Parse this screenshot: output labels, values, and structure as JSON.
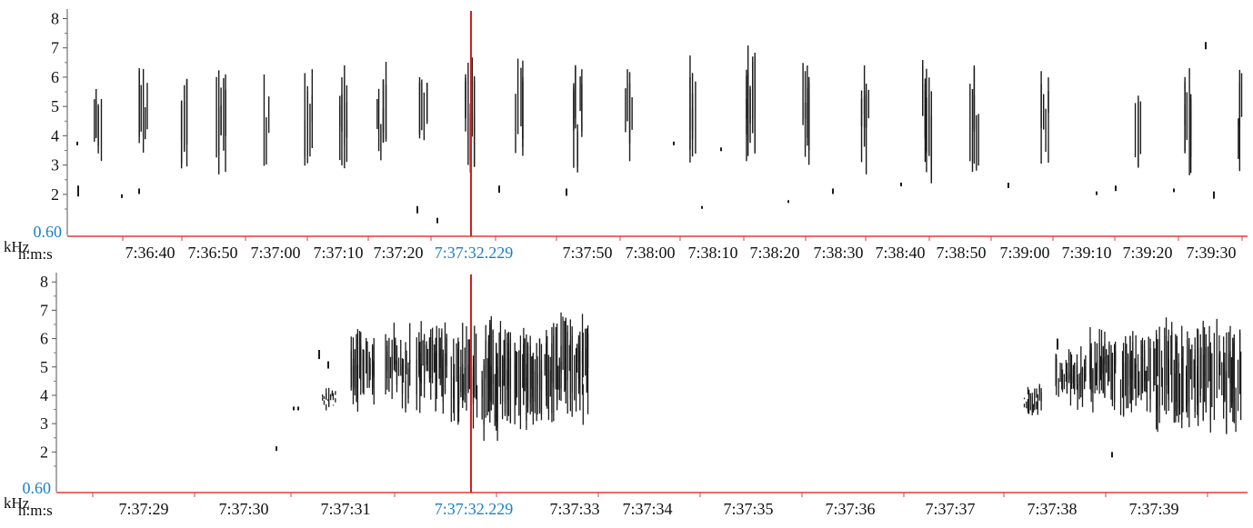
{
  "colors": {
    "marks": "#1b1b1b",
    "axis_line": "#e23b3b",
    "cursor": "#d81e1e",
    "highlight_text": "#1a7fc4",
    "axis_text": "#111111"
  },
  "panels": [
    {
      "id": "overview",
      "freq_unit": "kHz",
      "time_unit": "h:m:s",
      "y_ticks": [
        "8",
        "7",
        "6",
        "5",
        "4",
        "3",
        "2"
      ],
      "y_min_label": "0.60",
      "x_ticks": [
        "7:36:40",
        "7:36:50",
        "7:37:00",
        "7:37:10",
        "7:37:20",
        "7:37:32.229",
        "7:37:50",
        "7:38:00",
        "7:38:10",
        "7:38:20",
        "7:38:30",
        "7:38:40",
        "7:38:50",
        "7:39:00",
        "7:39:10",
        "7:39:20",
        "7:39:30"
      ],
      "cursor_time": "7:37:32.229"
    },
    {
      "id": "detail",
      "freq_unit": "kHz",
      "time_unit": "h:m:s",
      "y_ticks": [
        "8",
        "7",
        "6",
        "5",
        "4",
        "3",
        "2"
      ],
      "y_min_label": "0.60",
      "x_ticks": [
        "7:37:29",
        "7:37:30",
        "7:37:31",
        "7:37:32.229",
        "7:37:33",
        "7:37:34",
        "7:37:35",
        "7:37:36",
        "7:37:37",
        "7:37:38",
        "7:37:39"
      ],
      "cursor_time": "7:37:32.229"
    }
  ]
}
